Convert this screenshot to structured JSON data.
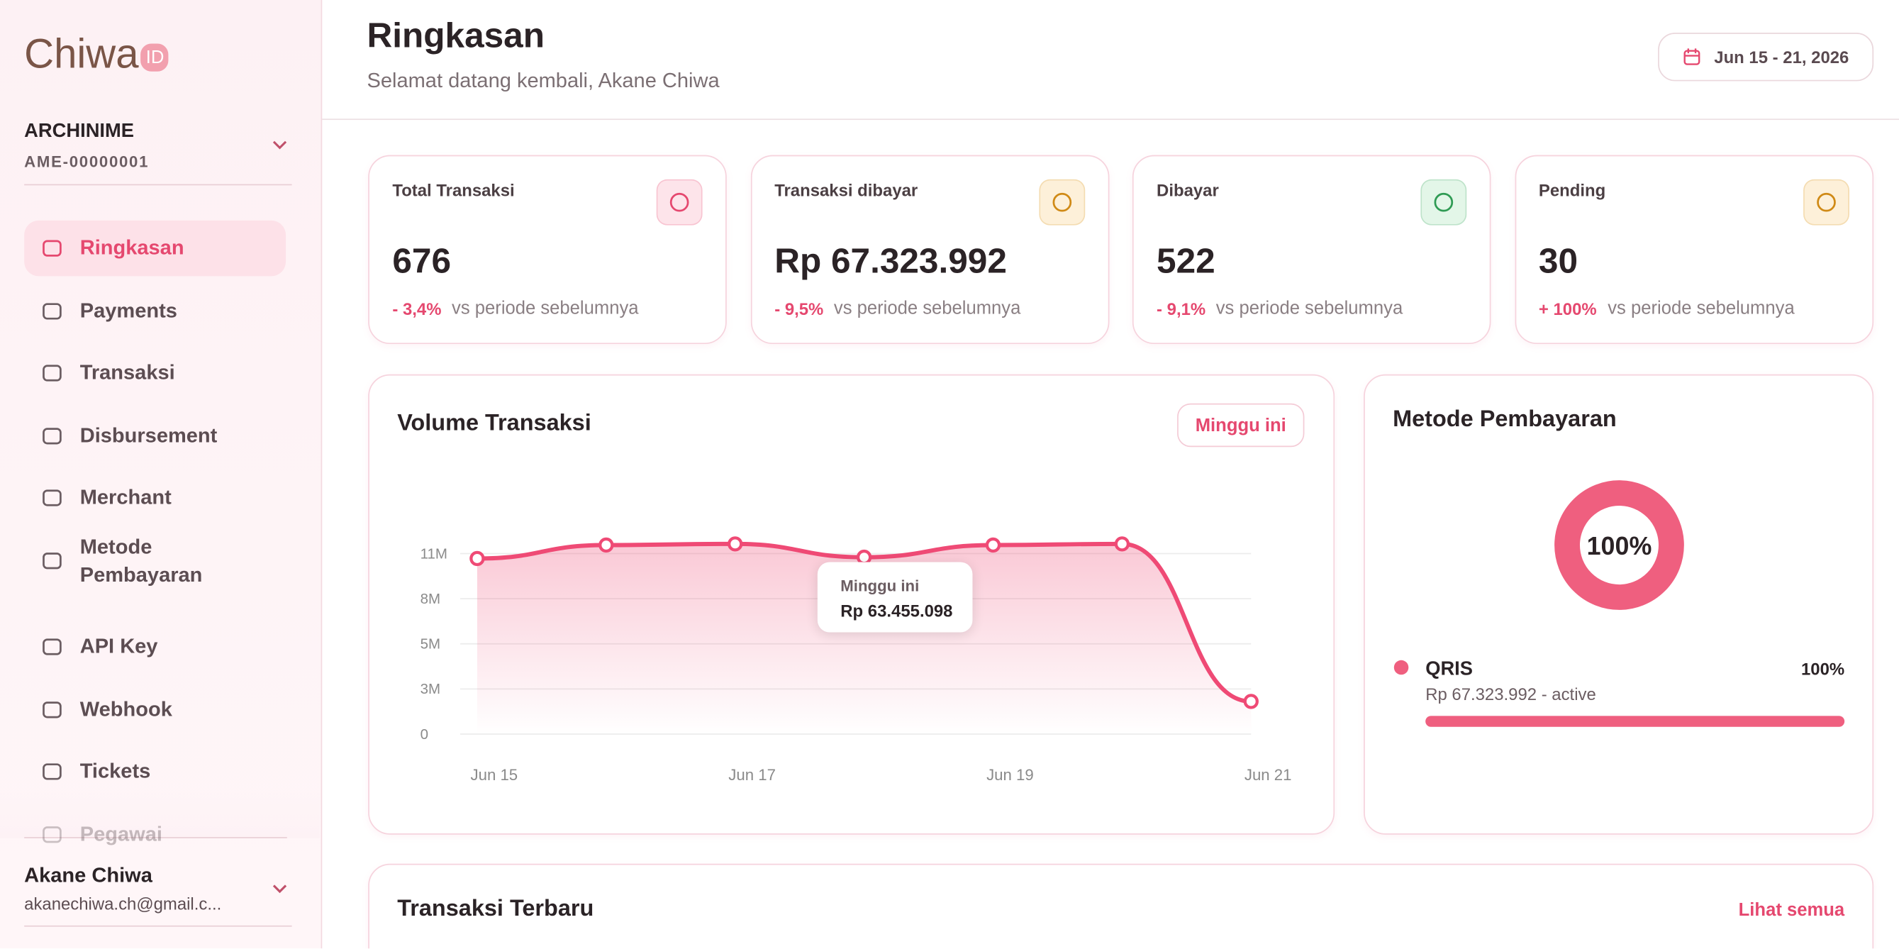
{
  "sidebar": {
    "logo": "Chiwa",
    "logo_badge": "ID",
    "org_name": "ARCHINIME",
    "org_id": "AME-00000001",
    "nav": [
      "Ringkasan",
      "Payments",
      "Transaksi",
      "Disbursement",
      "Merchant",
      "Metode Pembayaran",
      "API Key",
      "Webhook",
      "Tickets",
      "Pegawai"
    ],
    "user_name": "Akane Chiwa",
    "user_email": "akanechiwa.ch@gmail.c..."
  },
  "header": {
    "title": "Ringkasan",
    "subtitle": "Selamat datang kembali, Akane Chiwa",
    "date_range": "Jun 15 - 21, 2026"
  },
  "stats": [
    {
      "label": "Total Transaksi",
      "value": "676",
      "change": "- 3,4%",
      "note": "vs periode sebelumnya"
    },
    {
      "label": "Transaksi dibayar",
      "value": "Rp 67.323.992",
      "change": "- 9,5%",
      "note": "vs periode sebelumnya"
    },
    {
      "label": "Dibayar",
      "value": "522",
      "change": "- 9,1%",
      "note": "vs periode sebelumnya"
    },
    {
      "label": "Pending",
      "value": "30",
      "change": "+ 100%",
      "note": "vs periode sebelumnya"
    }
  ],
  "chart_data": [
    {
      "type": "line",
      "title": "Volume Transaksi",
      "filter_button": "Minggu ini",
      "categories": [
        "Jun 15",
        null,
        "Jun 17",
        null,
        "Jun 19",
        null,
        "Jun 21"
      ],
      "values": [
        10700000,
        11520000,
        11590000,
        10780000,
        11520000,
        11590000,
        1990000
      ],
      "color": "#ef4a75",
      "ylim": [
        0,
        11000000
      ],
      "yticks": [
        0,
        {
          "value": 2750000,
          "label": "3M"
        },
        {
          "value": 5500000,
          "label": "5M"
        },
        {
          "value": 8250000,
          "label": "8M"
        },
        {
          "value": 11000000,
          "label": "11M"
        }
      ],
      "grid": true,
      "tooltip": {
        "label": "Minggu ini",
        "value": "Rp 63.455.098"
      }
    },
    {
      "type": "pie",
      "title": "Metode Pembayaran",
      "categories": [
        "QRIS"
      ],
      "values": [
        100
      ],
      "value_labels": [
        "100%"
      ],
      "details": [
        "Rp 67.323.992 - active"
      ],
      "color": "#ef5f7f"
    }
  ],
  "recent": {
    "title": "Transaksi Terbaru",
    "link": "Lihat semua"
  }
}
